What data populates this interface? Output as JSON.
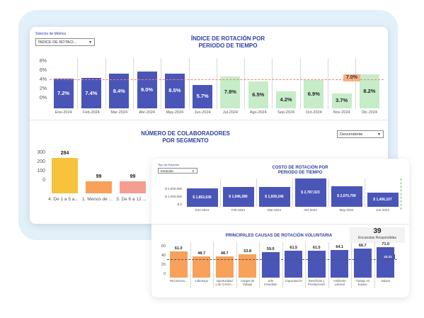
{
  "colors": {
    "blue": "#4a55b8",
    "green": "#c6ecc8",
    "orange": "#f7a15a",
    "yellow": "#f7c33c",
    "salmon": "#f59d91",
    "title": "#2e3ea0",
    "highlight": "#f5b083"
  },
  "panel1": {
    "selector_label": "Selector de Métrica",
    "selector_value": "ÍNDICE DE ROTACI...",
    "title_line1": "ÍNDICE DE ROTACIÓN POR",
    "title_line2": "PERIODO DE TIEMPO",
    "yticks": [
      "8%",
      "6%",
      "4%",
      "2%",
      "0%"
    ],
    "highlight_label": "7.0%",
    "chart_data": {
      "type": "bar",
      "categories": [
        "Ene-2024",
        "Feb-2024",
        "Mar-2024",
        "Abr-2024",
        "May-2024",
        "Jun-2024",
        "Jul-2024",
        "Ago-2024",
        "Sep-2024",
        "Oct-2024",
        "Nov-2024",
        "Dic-2024"
      ],
      "values": [
        7.2,
        7.4,
        8.4,
        9.0,
        8.5,
        5.7,
        7.8,
        6.5,
        4.2,
        6.9,
        3.7,
        8.2
      ],
      "labels": [
        "7.2%",
        "7.4%",
        "8.4%",
        "9.0%",
        "8.5%",
        "5.7%",
        "7.8%",
        "6.5%",
        "4.2%",
        "6.9%",
        "3.7%",
        "8.2%"
      ],
      "reference": 7.0
    }
  },
  "panel2": {
    "title_line1": "NÚMERO DE COLABORADORES",
    "title_line2": "POR SEGMENTO",
    "sort_value": "Descendente",
    "yticks": [
      "300",
      "200",
      "100",
      "0"
    ],
    "chart_data": {
      "type": "bar",
      "categories": [
        "4. De 1 a 5 a...",
        "1. Menos de ...",
        "3. De 6 a 12 ..."
      ],
      "values": [
        284,
        99,
        99
      ],
      "labels": [
        "284",
        "99",
        "99"
      ]
    }
  },
  "panel3": {
    "type_label": "Tipo de Rotación",
    "type_value": "Estándar",
    "title_line1": "COSTO DE ROTACIÓN POR",
    "title_line2": "PERIODO DE TIEMPO",
    "yticks": [
      "$ 2,000,000",
      "$ 1,000,000",
      "$ 0"
    ],
    "chart_data": {
      "type": "bar",
      "categories": [
        "Ene-2024",
        "Feb-2024",
        "Mar-2024",
        "Abr-2024",
        "May-2024",
        "Jun-2024"
      ],
      "values": [
        1853636,
        1946280,
        1939246,
        2787023,
        2070799,
        1406107
      ],
      "labels": [
        "$ 1,853,636",
        "$ 1,946,280",
        "$ 1,939,246",
        "$ 2,787,023",
        "$ 2,070,799",
        "$ 1,406,107"
      ]
    }
  },
  "panel4": {
    "title": "PRINCIPALES CAUSAS DE ROTACIÓN VOLUNTARIA",
    "kpi_value": "39",
    "kpi_label": "Encuestas Respondidas",
    "yticks": [
      "60",
      "40",
      "20",
      "0"
    ],
    "highlight_label": "42.21",
    "chart_data": {
      "type": "bar",
      "categories": [
        "Reconocim...",
        "Liderazgo",
        "Oportunidad\ny de Crecim...",
        "Cargas de\ntrabajo",
        "Jefe\nInmediato",
        "Capacitación",
        "Beneficios y\nPrestaciones",
        "Ambiente\nLaboral",
        "Trabajo en\nEquipo",
        "Salario"
      ],
      "values": [
        61.0,
        48.7,
        48.7,
        53.8,
        59.0,
        61.5,
        61.5,
        64.1,
        66.7,
        71.0
      ],
      "labels": [
        "61.0",
        "48.7",
        "48.7",
        "53.8",
        "59.0",
        "61.5",
        "61.5",
        "64.1",
        "66.7",
        "71.0"
      ],
      "reference": 42.21
    }
  }
}
